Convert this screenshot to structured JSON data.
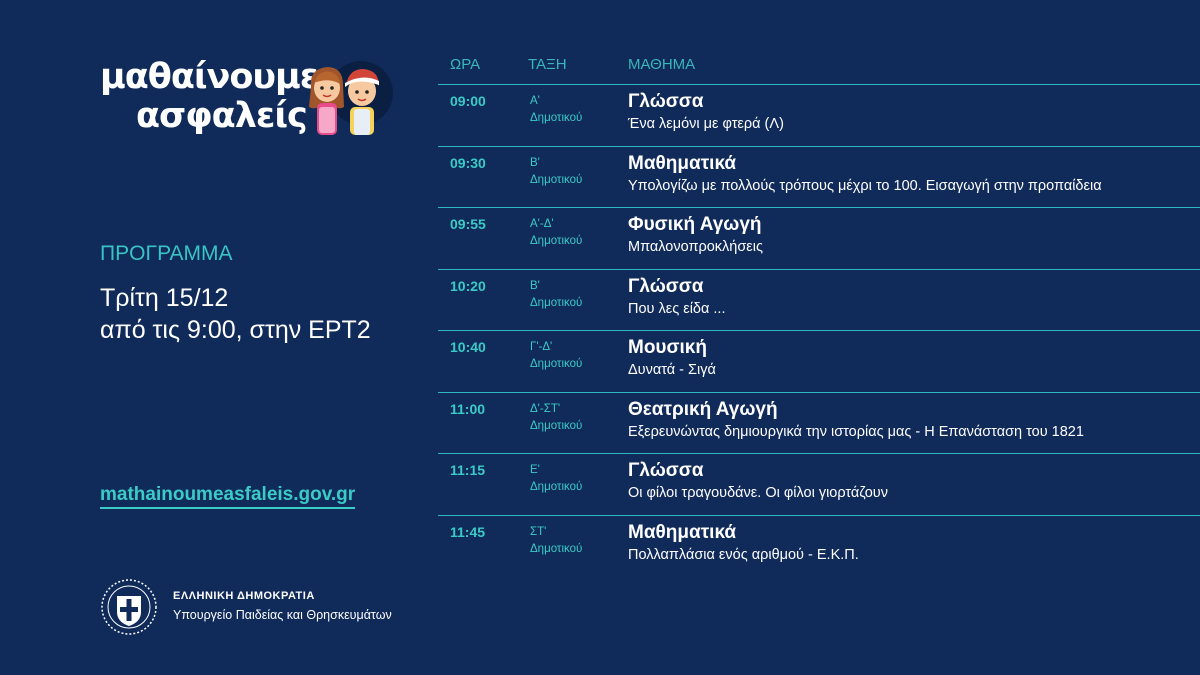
{
  "logo": {
    "line1": "μαθαίνουμε",
    "line2": "ασφαλείς"
  },
  "program": {
    "label": "ΠΡΟΓΡΑΜΜΑ",
    "date_line": "Τρίτη 15/12",
    "time_line": "από τις 9:00, στην ΕΡΤ2"
  },
  "site": "mathainoumeasfaleis.gov.gr",
  "gov": {
    "title": "ΕΛΛΗΝΙΚΗ ΔΗΜΟΚΡΑΤΙΑ",
    "ministry": "Υπουργείο Παιδείας και Θρησκευμάτων"
  },
  "table": {
    "headers": {
      "time": "ΩΡΑ",
      "grade": "ΤΑΞΗ",
      "subject": "ΜΑΘΗΜΑ"
    },
    "rows": [
      {
        "time": "09:00",
        "grade": "Α'",
        "level": "Δημοτικού",
        "subject": "Γλώσσα",
        "topic": "Ένα λεμόνι με φτερά (Λ)"
      },
      {
        "time": "09:30",
        "grade": "Β'",
        "level": "Δημοτικού",
        "subject": "Μαθηματικά",
        "topic": "Υπολογίζω με πολλούς τρόπους μέχρι το 100. Εισαγωγή στην προπαίδεια"
      },
      {
        "time": "09:55",
        "grade": "Α'-Δ'",
        "level": "Δημοτικού",
        "subject": "Φυσική Αγωγή",
        "topic": "Μπαλονοπροκλήσεις"
      },
      {
        "time": "10:20",
        "grade": "Β'",
        "level": "Δημοτικού",
        "subject": "Γλώσσα",
        "topic": "Που λες είδα ..."
      },
      {
        "time": "10:40",
        "grade": "Γ'-Δ'",
        "level": "Δημοτικού",
        "subject": "Μουσική",
        "topic": "Δυνατά - Σιγά"
      },
      {
        "time": "11:00",
        "grade": "Δ'-ΣΤ'",
        "level": "Δημοτικού",
        "subject": "Θεατρική Αγωγή",
        "topic": "Εξερευνώντας δημιουργικά την ιστορίας μας - Η Επανάσταση του 1821"
      },
      {
        "time": "11:15",
        "grade": "Ε'",
        "level": "Δημοτικού",
        "subject": "Γλώσσα",
        "topic": "Οι φίλοι τραγουδάνε. Οι φίλοι γιορτάζουν"
      },
      {
        "time": "11:45",
        "grade": "ΣΤ'",
        "level": "Δημοτικού",
        "subject": "Μαθηματικά",
        "topic": "Πολλαπλάσια ενός αριθμού - Ε.Κ.Π."
      }
    ]
  },
  "colors": {
    "background": "#102a5a",
    "accent": "#3bcbc6",
    "text": "#ffffff"
  }
}
